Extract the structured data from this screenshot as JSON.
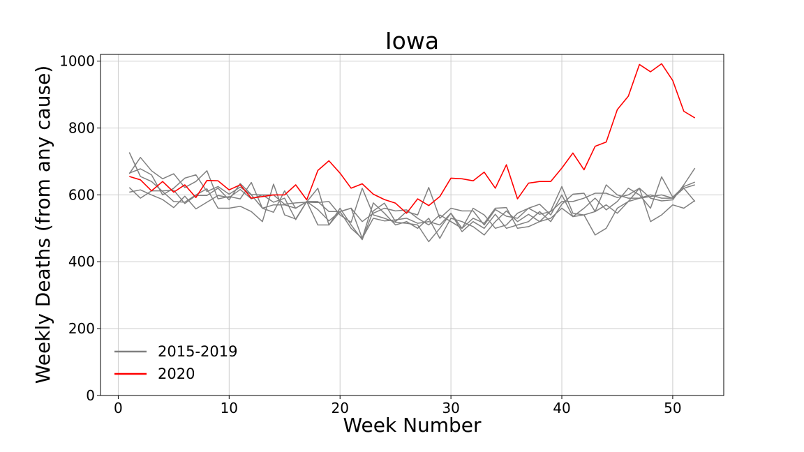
{
  "chart_data": {
    "type": "line",
    "title": "Iowa",
    "xlabel": "Week Number",
    "ylabel": "Weekly Deaths (from any cause)",
    "xlim": [
      -1.6,
      54.6
    ],
    "ylim": [
      0,
      1020
    ],
    "xticks": [
      0,
      10,
      20,
      30,
      40,
      50
    ],
    "yticks": [
      0,
      200,
      400,
      600,
      800,
      1000
    ],
    "grid": true,
    "legend_position": "lower-left",
    "x": [
      1,
      2,
      3,
      4,
      5,
      6,
      7,
      8,
      9,
      10,
      11,
      12,
      13,
      14,
      15,
      16,
      17,
      18,
      19,
      20,
      21,
      22,
      23,
      24,
      25,
      26,
      27,
      28,
      29,
      30,
      31,
      32,
      33,
      34,
      35,
      36,
      37,
      38,
      39,
      40,
      41,
      42,
      43,
      44,
      45,
      46,
      47,
      48,
      49,
      50,
      51,
      52
    ],
    "series": [
      {
        "name": "2015-2019",
        "color": "#808080",
        "values": [
          663,
          712,
          672,
          648,
          663,
          622,
          640,
          672,
          588,
          595,
          588,
          637,
          560,
          548,
          612,
          560,
          579,
          620,
          510,
          560,
          510,
          466,
          552,
          575,
          520,
          550,
          540,
          622,
          530,
          560,
          552,
          552,
          510,
          556,
          536,
          530,
          560,
          572,
          540,
          600,
          535,
          560,
          590,
          555,
          580,
          620,
          600,
          560,
          654,
          593,
          625,
          638
        ]
      },
      {
        "name": "",
        "color": "#808080",
        "values": [
          727,
          655,
          640,
          610,
          580,
          578,
          600,
          618,
          560,
          560,
          566,
          550,
          520,
          632,
          540,
          528,
          580,
          510,
          510,
          550,
          560,
          470,
          576,
          545,
          510,
          520,
          500,
          530,
          470,
          530,
          520,
          505,
          480,
          520,
          552,
          520,
          542,
          520,
          552,
          625,
          545,
          540,
          480,
          500,
          560,
          580,
          620,
          520,
          540,
          570,
          560,
          583
        ]
      },
      {
        "name": "",
        "color": "#808080",
        "values": [
          665,
          678,
          660,
          600,
          620,
          650,
          660,
          610,
          625,
          602,
          623,
          600,
          560,
          570,
          570,
          560,
          580,
          580,
          550,
          550,
          500,
          470,
          530,
          522,
          525,
          530,
          515,
          520,
          510,
          545,
          500,
          560,
          540,
          500,
          510,
          545,
          560,
          542,
          550,
          580,
          580,
          590,
          605,
          605,
          592,
          600,
          620,
          590,
          582,
          585,
          630,
          680
        ]
      },
      {
        "name": "",
        "color": "#808080",
        "values": [
          622,
          590,
          612,
          612,
          614,
          574,
          598,
          598,
          620,
          585,
          634,
          601,
          600,
          600,
          572,
          576,
          578,
          577,
          580,
          540,
          518,
          620,
          540,
          530,
          518,
          515,
          510,
          460,
          500,
          545,
          490,
          520,
          500,
          542,
          500,
          510,
          520,
          550,
          520,
          572,
          602,
          605,
          550,
          630,
          600,
          590,
          590,
          595,
          600,
          590,
          620,
          580
        ]
      },
      {
        "name": "",
        "color": "#808080",
        "values": [
          608,
          615,
          600,
          586,
          562,
          596,
          558,
          578,
          598,
          592,
          616,
          588,
          600,
          578,
          590,
          526,
          580,
          556,
          522,
          550,
          560,
          520,
          545,
          560,
          552,
          555,
          530,
          510,
          540,
          520,
          500,
          530,
          515,
          560,
          562,
          500,
          505,
          520,
          530,
          560,
          535,
          540,
          550,
          570,
          545,
          580,
          590,
          600,
          590,
          590,
          620,
          630
        ]
      },
      {
        "name": "2020",
        "color": "#ff0000",
        "values": [
          655,
          645,
          612,
          640,
          608,
          630,
          592,
          643,
          642,
          615,
          630,
          590,
          595,
          600,
          600,
          630,
          585,
          673,
          702,
          665,
          620,
          633,
          602,
          586,
          575,
          545,
          588,
          568,
          595,
          650,
          648,
          642,
          668,
          620,
          690,
          588,
          635,
          640,
          640,
          680,
          725,
          675,
          745,
          758,
          855,
          895,
          990,
          968,
          992,
          942,
          850,
          830
        ]
      }
    ]
  }
}
